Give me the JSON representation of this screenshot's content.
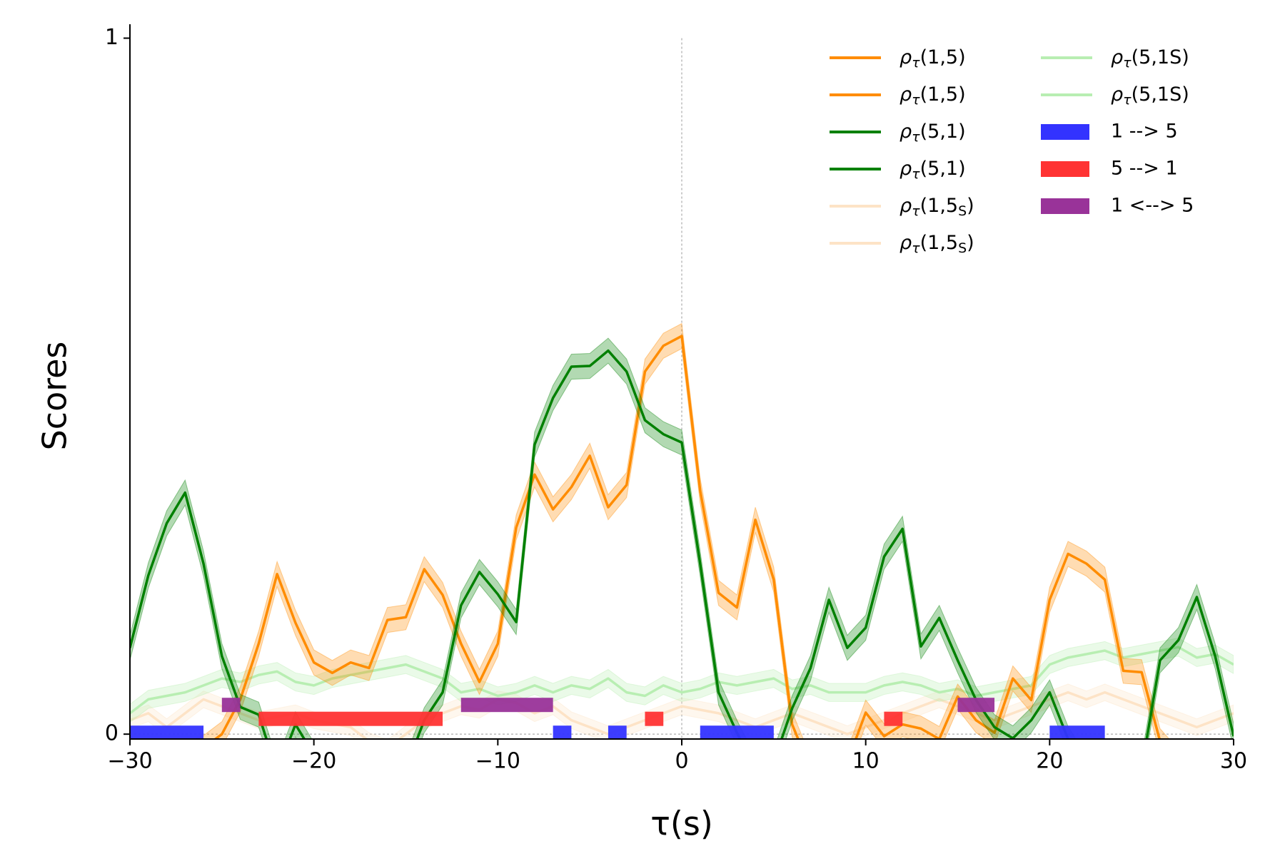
{
  "chart_data": {
    "type": "line",
    "x_label": "τ(s)",
    "y_label": "Scores",
    "xlim": [
      -30,
      30
    ],
    "ylim": [
      -0.007,
      1.02
    ],
    "xticks": [
      {
        "value": -30,
        "label": "−30"
      },
      {
        "value": -20,
        "label": "−20"
      },
      {
        "value": -10,
        "label": "−10"
      },
      0,
      10,
      20,
      30
    ],
    "yticks": [
      0,
      1
    ],
    "reference_lines": {
      "x": 0,
      "y": 0
    },
    "x": [
      -30,
      -29,
      -28,
      -27,
      -26,
      -25,
      -24,
      -23,
      -22,
      -21,
      -20,
      -19,
      -18,
      -17,
      -16,
      -15,
      -14,
      -13,
      -12,
      -11,
      -10,
      -9,
      -8,
      -7,
      -6,
      -5,
      -4,
      -3,
      -2,
      -1,
      0,
      1,
      2,
      3,
      4,
      5,
      6,
      7,
      8,
      9,
      10,
      11,
      12,
      13,
      14,
      15,
      16,
      17,
      18,
      19,
      20,
      21,
      22,
      23,
      24,
      25,
      26,
      27,
      28,
      29,
      30
    ],
    "series": [
      {
        "name": "ρτ(1,5)",
        "color": "#ff8c00",
        "error": 0.018,
        "values": [
          -0.05,
          -0.05,
          -0.04,
          -0.03,
          -0.02,
          0.0,
          0.05,
          0.13,
          0.23,
          0.16,
          0.103,
          0.088,
          0.103,
          0.095,
          0.164,
          0.168,
          0.237,
          0.2,
          0.13,
          0.075,
          0.13,
          0.297,
          0.373,
          0.323,
          0.355,
          0.4,
          0.326,
          0.358,
          0.521,
          0.558,
          0.572,
          0.35,
          0.203,
          0.182,
          0.308,
          0.222,
          0.014,
          -0.05,
          -0.05,
          -0.04,
          0.031,
          -0.003,
          0.014,
          0.008,
          -0.007,
          0.054,
          0.02,
          0.002,
          0.08,
          0.049,
          0.193,
          0.259,
          0.245,
          0.222,
          0.091,
          0.089,
          -0.01,
          -0.04,
          -0.04,
          -0.03,
          -0.03
        ]
      },
      {
        "name": "ρτ(5,1)",
        "color": "#008000",
        "error": 0.018,
        "values": [
          0.124,
          0.228,
          0.303,
          0.347,
          0.245,
          0.112,
          0.039,
          0.028,
          -0.055,
          0.014,
          -0.03,
          -0.05,
          -0.05,
          -0.05,
          -0.05,
          -0.05,
          0.02,
          0.06,
          0.185,
          0.233,
          0.201,
          0.161,
          0.416,
          0.483,
          0.528,
          0.529,
          0.551,
          0.521,
          0.451,
          0.431,
          0.419,
          0.245,
          0.06,
          0.002,
          -0.05,
          -0.04,
          0.037,
          0.095,
          0.193,
          0.124,
          0.153,
          0.255,
          0.295,
          0.126,
          0.167,
          0.106,
          0.049,
          0.01,
          -0.006,
          0.02,
          0.06,
          -0.007,
          -0.05,
          -0.05,
          -0.05,
          -0.05,
          0.106,
          0.135,
          0.197,
          0.112,
          -0.003
        ]
      },
      {
        "name": "ρτ(1,5S)",
        "color": "#fde3c6",
        "error": 0.012,
        "values": [
          0.02,
          0.03,
          0.01,
          0.03,
          0.05,
          0.04,
          0.03,
          0.02,
          0.025,
          0.03,
          0.02,
          0.015,
          0.01,
          -0.01,
          -0.02,
          0.0,
          0.02,
          0.03,
          0.04,
          0.035,
          0.05,
          0.045,
          0.03,
          0.04,
          0.02,
          0.01,
          0.0,
          0.01,
          0.02,
          0.03,
          0.04,
          0.035,
          0.03,
          0.02,
          0.01,
          0.02,
          0.03,
          0.02,
          0.01,
          0.0,
          0.01,
          0.02,
          0.03,
          0.04,
          0.05,
          0.04,
          0.03,
          0.02,
          0.03,
          0.04,
          0.05,
          0.06,
          0.05,
          0.06,
          0.05,
          0.04,
          0.03,
          0.02,
          0.01,
          0.02,
          0.03
        ]
      },
      {
        "name": "ρτ(5,1S)",
        "color": "#b8eeb2",
        "error": 0.013,
        "values": [
          0.03,
          0.05,
          0.055,
          0.06,
          0.07,
          0.08,
          0.075,
          0.085,
          0.09,
          0.075,
          0.07,
          0.08,
          0.085,
          0.09,
          0.095,
          0.1,
          0.09,
          0.08,
          0.06,
          0.065,
          0.055,
          0.06,
          0.07,
          0.06,
          0.07,
          0.065,
          0.08,
          0.06,
          0.055,
          0.07,
          0.06,
          0.065,
          0.075,
          0.07,
          0.075,
          0.08,
          0.065,
          0.07,
          0.06,
          0.06,
          0.06,
          0.07,
          0.075,
          0.07,
          0.06,
          0.065,
          0.055,
          0.06,
          0.065,
          0.07,
          0.1,
          0.11,
          0.115,
          0.12,
          0.11,
          0.115,
          0.12,
          0.125,
          0.11,
          0.115,
          0.1
        ]
      }
    ],
    "intervals": [
      {
        "name": "1 --> 5",
        "color": "#3333ff",
        "y": 0.002,
        "spans": [
          [
            -30,
            -26
          ],
          [
            -7,
            -6
          ],
          [
            -4,
            -3
          ],
          [
            1,
            5
          ],
          [
            20,
            23
          ]
        ]
      },
      {
        "name": "5 --> 1",
        "color": "#ff3333",
        "y": 0.022,
        "spans": [
          [
            -23,
            -13
          ],
          [
            -2,
            -1
          ],
          [
            11,
            12
          ]
        ]
      },
      {
        "name": "1 <--> 5",
        "color": "#993399",
        "y": 0.042,
        "spans": [
          [
            -25,
            -24
          ],
          [
            -12,
            -7
          ],
          [
            15,
            17
          ]
        ]
      }
    ]
  }
}
